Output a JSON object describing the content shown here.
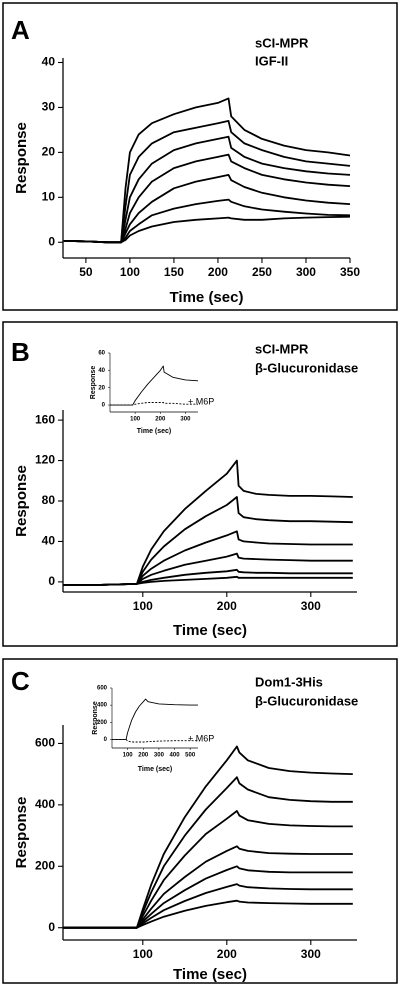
{
  "chart_data": [
    {
      "type": "line",
      "panel_label": "A",
      "title": "sCI-MPR",
      "subtitle": "IGF-II",
      "x_label": "Time (sec)",
      "y_label": "Response",
      "color": "#000000",
      "xlim": [
        24,
        350
      ],
      "ylim": [
        -3.5,
        41
      ],
      "xticks": [
        50,
        100,
        150,
        200,
        250,
        300,
        350
      ],
      "yticks": [
        0,
        10,
        20,
        30,
        40
      ],
      "x": [
        25,
        50,
        75,
        90,
        95,
        100,
        110,
        125,
        150,
        175,
        200,
        212,
        215,
        230,
        250,
        275,
        300,
        325,
        350
      ],
      "series": [
        {
          "values": [
            0.3,
            0.2,
            0,
            0,
            12,
            20,
            24,
            26.5,
            28.5,
            30,
            31,
            32,
            28,
            25,
            23,
            21.5,
            20.5,
            20,
            19.3
          ]
        },
        {
          "values": [
            0.3,
            0.2,
            0,
            0,
            8,
            15,
            19,
            22,
            24.5,
            25.5,
            26.5,
            27,
            24.5,
            22,
            20.5,
            19,
            18,
            17.5,
            17
          ]
        },
        {
          "values": [
            0.3,
            0.2,
            0,
            0,
            5,
            10,
            14,
            17.5,
            20.5,
            22,
            23,
            23.5,
            21,
            19,
            17.5,
            16.5,
            15.8,
            15.3,
            15
          ]
        },
        {
          "values": [
            0.3,
            0.2,
            0,
            0,
            3,
            6.5,
            10,
            13.5,
            16.5,
            18,
            19,
            19.5,
            18,
            16.5,
            15,
            14,
            13.3,
            12.8,
            12.5
          ]
        },
        {
          "values": [
            0.3,
            0.2,
            0,
            0,
            2,
            4,
            6.5,
            9,
            12,
            13.5,
            14.5,
            15,
            13.8,
            12.3,
            11,
            10,
            9.3,
            8.8,
            8.5
          ]
        },
        {
          "values": [
            0.3,
            0.2,
            0,
            0,
            1,
            2.5,
            4,
            6,
            7.5,
            8.5,
            9.2,
            9.5,
            9,
            8,
            7.3,
            6.8,
            6.4,
            6.1,
            6
          ]
        },
        {
          "values": [
            0.3,
            0.2,
            0,
            0,
            0.5,
            1.5,
            2.5,
            3.5,
            4.5,
            5,
            5.3,
            5.5,
            5.3,
            5,
            5,
            5.3,
            5.5,
            5.6,
            5.7
          ]
        }
      ]
    },
    {
      "type": "line",
      "panel_label": "B",
      "title": "sCI-MPR",
      "subtitle": "β-Glucuronidase",
      "x_label": "Time (sec)",
      "y_label": "Response",
      "color": "#000000",
      "xlim": [
        5,
        355
      ],
      "ylim": [
        -10,
        170
      ],
      "xticks": [
        100,
        200,
        300
      ],
      "yticks": [
        0,
        40,
        80,
        120,
        160
      ],
      "x": [
        5,
        50,
        90,
        93,
        100,
        110,
        125,
        150,
        175,
        200,
        212,
        214,
        220,
        235,
        250,
        275,
        300,
        325,
        350
      ],
      "series": [
        {
          "values": [
            -3,
            -3,
            -2,
            -2,
            15,
            32,
            50,
            72,
            90,
            107,
            120,
            95,
            90,
            87,
            86,
            85,
            85,
            84.5,
            84
          ]
        },
        {
          "values": [
            -3,
            -3,
            -2,
            -2,
            10,
            22,
            35,
            52,
            65,
            76,
            84,
            68,
            64,
            62,
            61,
            60,
            60,
            59.5,
            59
          ]
        },
        {
          "values": [
            -3,
            -3,
            -2,
            -2,
            6,
            13,
            21,
            31,
            39,
            46,
            50,
            42,
            40,
            39,
            38,
            37.5,
            37,
            37,
            37
          ]
        },
        {
          "values": [
            -3,
            -3,
            -2,
            -2,
            3,
            7,
            11,
            17,
            21,
            25,
            28,
            24,
            23,
            22.5,
            22,
            21.5,
            21,
            21,
            21
          ]
        },
        {
          "values": [
            -3,
            -3,
            -2,
            -2,
            0,
            2,
            4,
            7,
            9,
            10.5,
            12,
            10,
            9.5,
            9,
            9,
            8.5,
            8.5,
            8.5,
            8.5
          ]
        },
        {
          "values": [
            -3,
            -3,
            -2,
            -2,
            -1,
            0,
            1,
            2,
            3,
            4,
            5,
            4,
            4,
            4,
            4,
            4,
            4,
            4,
            4
          ]
        }
      ]
    },
    {
      "type": "line",
      "x_label": "Time (sec)",
      "y_label": "Response",
      "annotation": "+ M6P",
      "color": "#000000",
      "xlim": [
        0,
        350
      ],
      "ylim": [
        -8,
        60
      ],
      "xticks": [
        100,
        200,
        300
      ],
      "yticks": [
        0,
        20,
        40,
        60
      ],
      "x": [
        0,
        90,
        100,
        125,
        150,
        175,
        200,
        212,
        215,
        250,
        300,
        350
      ],
      "series": [
        {
          "values": [
            0,
            0,
            5,
            15,
            24,
            32,
            40,
            45,
            38,
            32,
            29,
            28
          ],
          "dashed": false
        },
        {
          "values": [
            0,
            0,
            1,
            2,
            3,
            3,
            3,
            3,
            2,
            2,
            1,
            1
          ],
          "dashed": true
        }
      ]
    },
    {
      "type": "line",
      "panel_label": "C",
      "title": "Dom1-3His",
      "subtitle": "β-Glucuronidase",
      "x_label": "Time (sec)",
      "y_label": "Response",
      "color": "#000000",
      "xlim": [
        5,
        355
      ],
      "ylim": [
        -40,
        660
      ],
      "xticks": [
        100,
        200,
        300
      ],
      "yticks": [
        0,
        200,
        400,
        600
      ],
      "x": [
        5,
        50,
        93,
        100,
        110,
        125,
        150,
        175,
        200,
        212,
        215,
        225,
        250,
        275,
        300,
        325,
        350
      ],
      "series": [
        {
          "values": [
            0,
            0,
            0,
            60,
            140,
            240,
            360,
            460,
            545,
            590,
            570,
            545,
            520,
            510,
            505,
            502,
            500
          ]
        },
        {
          "values": [
            0,
            0,
            0,
            50,
            115,
            200,
            300,
            385,
            455,
            490,
            470,
            450,
            425,
            416,
            412,
            410,
            410
          ]
        },
        {
          "values": [
            0,
            0,
            0,
            38,
            88,
            155,
            235,
            305,
            355,
            380,
            365,
            350,
            338,
            333,
            331,
            330,
            330
          ]
        },
        {
          "values": [
            0,
            0,
            0,
            27,
            62,
            110,
            165,
            215,
            250,
            265,
            257,
            250,
            243,
            241,
            240,
            240,
            240
          ]
        },
        {
          "values": [
            0,
            0,
            0,
            20,
            45,
            80,
            122,
            160,
            188,
            200,
            193,
            187,
            182,
            180,
            180,
            180,
            180
          ]
        },
        {
          "values": [
            0,
            0,
            0,
            14,
            32,
            57,
            87,
            113,
            133,
            142,
            137,
            132,
            128,
            126,
            125,
            125,
            125
          ]
        },
        {
          "values": [
            0,
            0,
            0,
            9,
            20,
            36,
            55,
            71,
            83,
            88,
            85,
            82,
            80,
            79,
            78,
            78,
            78
          ]
        }
      ]
    },
    {
      "type": "line",
      "x_label": "Time (sec)",
      "y_label": "Response",
      "annotation": "+ M6P",
      "color": "#000000",
      "xlim": [
        0,
        550
      ],
      "ylim": [
        -100,
        600
      ],
      "xticks": [
        100,
        200,
        300,
        400,
        500
      ],
      "yticks": [
        0,
        200,
        400,
        600
      ],
      "x": [
        0,
        90,
        100,
        125,
        150,
        175,
        200,
        215,
        230,
        300,
        400,
        500,
        550
      ],
      "series": [
        {
          "values": [
            0,
            0,
            80,
            220,
            320,
            390,
            440,
            470,
            440,
            415,
            405,
            400,
            400
          ],
          "dashed": false
        },
        {
          "values": [
            0,
            0,
            -20,
            -30,
            -30,
            -30,
            -30,
            -30,
            -25,
            -20,
            -15,
            -15,
            -15
          ],
          "dashed": true
        }
      ]
    }
  ]
}
